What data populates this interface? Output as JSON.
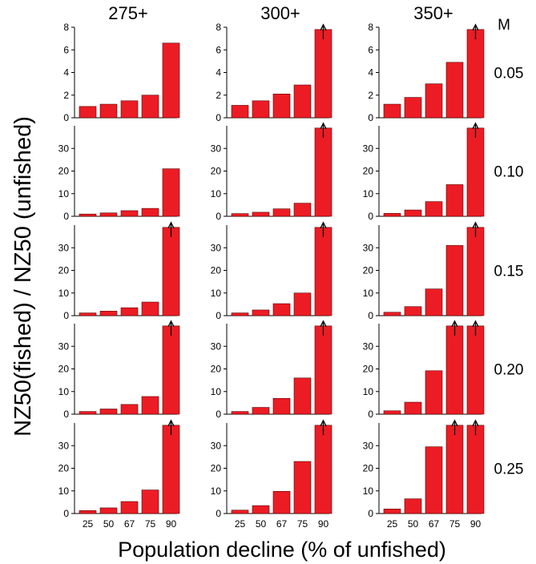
{
  "chart_data": {
    "type": "bar",
    "layout": "grid",
    "ylabel": "NZ50(fished) / NZ50 (unfished)",
    "xlabel": "Population decline (% of unfished)",
    "categories": [
      "25",
      "50",
      "67",
      "75",
      "90"
    ],
    "columns": [
      "275+",
      "300+",
      "350+"
    ],
    "row_header": "M",
    "rows": [
      {
        "label": "0.05",
        "ylim": [
          0,
          8
        ],
        "yticks": [
          0,
          2,
          4,
          6,
          8
        ],
        "panels": [
          {
            "column": "275+",
            "values": [
              1.0,
              1.2,
              1.5,
              2.0,
              6.6
            ],
            "exceeds": [
              false,
              false,
              false,
              false,
              false
            ]
          },
          {
            "column": "300+",
            "values": [
              1.1,
              1.5,
              2.1,
              2.9,
              7.8
            ],
            "exceeds": [
              false,
              false,
              false,
              false,
              true
            ]
          },
          {
            "column": "350+",
            "values": [
              1.2,
              1.8,
              3.0,
              4.9,
              7.8
            ],
            "exceeds": [
              false,
              false,
              false,
              false,
              true
            ]
          }
        ]
      },
      {
        "label": "0.10",
        "ylim": [
          0,
          40
        ],
        "yticks": [
          0,
          10,
          20,
          30
        ],
        "panels": [
          {
            "column": "275+",
            "values": [
              1.0,
              1.5,
              2.5,
              3.5,
              21.0
            ],
            "exceeds": [
              false,
              false,
              false,
              false,
              false
            ]
          },
          {
            "column": "300+",
            "values": [
              1.2,
              1.8,
              3.3,
              5.8,
              39.0
            ],
            "exceeds": [
              false,
              false,
              false,
              false,
              true
            ]
          },
          {
            "column": "350+",
            "values": [
              1.3,
              2.8,
              6.5,
              14.0,
              39.0
            ],
            "exceeds": [
              false,
              false,
              false,
              false,
              true
            ]
          }
        ]
      },
      {
        "label": "0.15",
        "ylim": [
          0,
          40
        ],
        "yticks": [
          0,
          10,
          20,
          30
        ],
        "panels": [
          {
            "column": "275+",
            "values": [
              1.2,
              2.0,
              3.5,
              6.0,
              39.0
            ],
            "exceeds": [
              false,
              false,
              false,
              false,
              true
            ]
          },
          {
            "column": "300+",
            "values": [
              1.2,
              2.5,
              5.3,
              10.0,
              39.0
            ],
            "exceeds": [
              false,
              false,
              false,
              false,
              true
            ]
          },
          {
            "column": "350+",
            "values": [
              1.5,
              4.0,
              11.8,
              31.0,
              39.0
            ],
            "exceeds": [
              false,
              false,
              false,
              false,
              true
            ]
          }
        ]
      },
      {
        "label": "0.20",
        "ylim": [
          0,
          40
        ],
        "yticks": [
          0,
          10,
          20,
          30
        ],
        "panels": [
          {
            "column": "275+",
            "values": [
              1.2,
              2.3,
              4.3,
              7.8,
              39.0
            ],
            "exceeds": [
              false,
              false,
              false,
              false,
              true
            ]
          },
          {
            "column": "300+",
            "values": [
              1.2,
              3.0,
              7.0,
              16.0,
              39.0
            ],
            "exceeds": [
              false,
              false,
              false,
              false,
              true
            ]
          },
          {
            "column": "350+",
            "values": [
              1.5,
              5.3,
              19.2,
              39.0,
              39.0
            ],
            "exceeds": [
              false,
              false,
              false,
              true,
              true
            ]
          }
        ]
      },
      {
        "label": "0.25",
        "ylim": [
          0,
          40
        ],
        "yticks": [
          0,
          10,
          20,
          30
        ],
        "panels": [
          {
            "column": "275+",
            "values": [
              1.3,
              2.5,
              5.3,
              10.4,
              39.0
            ],
            "exceeds": [
              false,
              false,
              false,
              false,
              true
            ]
          },
          {
            "column": "300+",
            "values": [
              1.5,
              3.5,
              9.8,
              23.0,
              39.0
            ],
            "exceeds": [
              false,
              false,
              false,
              false,
              true
            ]
          },
          {
            "column": "350+",
            "values": [
              2.0,
              6.5,
              29.5,
              39.0,
              39.0
            ],
            "exceeds": [
              false,
              false,
              false,
              true,
              true
            ]
          }
        ]
      }
    ],
    "colors": {
      "bar": "#ec1c24",
      "bar_edge": "#5a0000",
      "axis": "#000000"
    }
  }
}
